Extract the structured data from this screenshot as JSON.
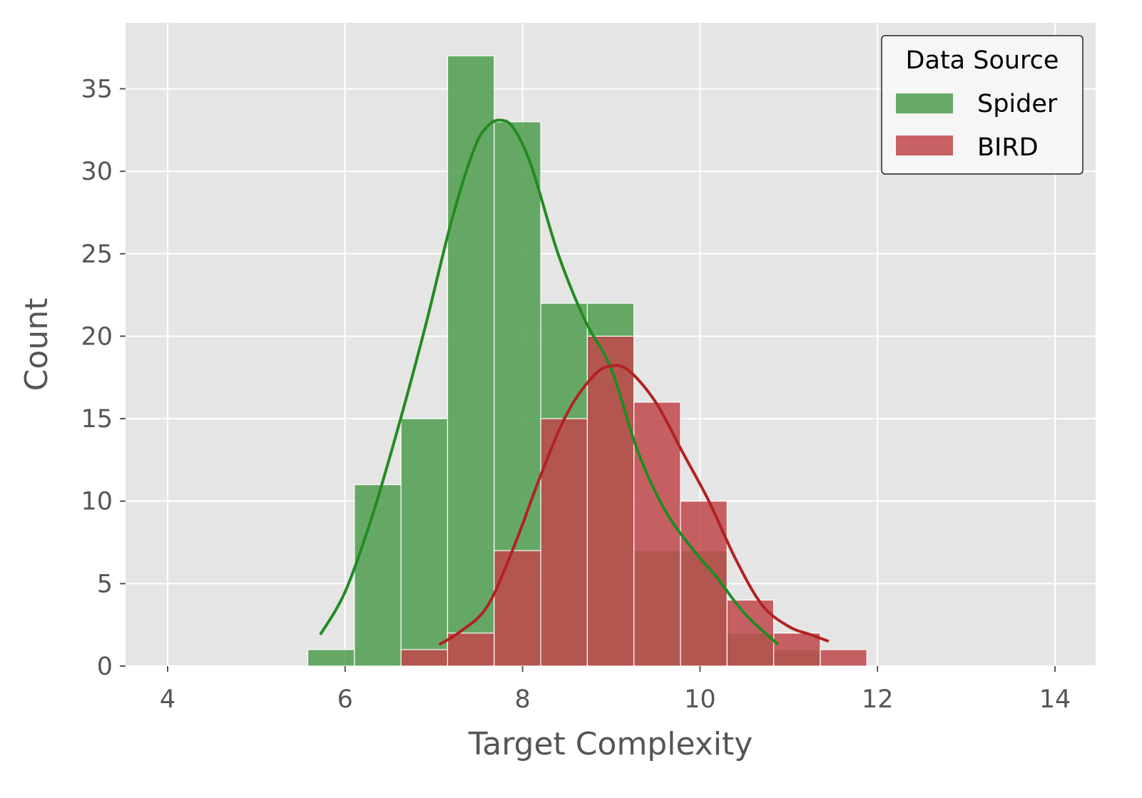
{
  "chart_data": {
    "type": "bar",
    "subtype": "overlaid-histogram-with-kde",
    "style": "ggplot",
    "grid": true,
    "xlabel": "Target Complexity",
    "ylabel": "Count",
    "xlim": [
      3.5,
      14.25
    ],
    "ylim": [
      0,
      39
    ],
    "x_ticks": [
      4,
      6,
      8,
      10,
      12,
      14
    ],
    "y_ticks": [
      0,
      5,
      10,
      15,
      20,
      25,
      30,
      35
    ],
    "bin_width": 0.525,
    "legend": {
      "title": "Data Source",
      "position": "top-right",
      "entries": [
        {
          "label": "Spider",
          "color": "#4f9e4f"
        },
        {
          "label": "BIRD",
          "color": "#c0484b"
        }
      ]
    },
    "series": [
      {
        "name": "Spider",
        "bar_color": "#4f9e4f",
        "kde_color": "#228b22",
        "bins": [
          {
            "x0": 5.58,
            "count": 1
          },
          {
            "x0": 6.105,
            "count": 11
          },
          {
            "x0": 6.63,
            "count": 15
          },
          {
            "x0": 7.155,
            "count": 37
          },
          {
            "x0": 7.68,
            "count": 33
          },
          {
            "x0": 8.205,
            "count": 22
          },
          {
            "x0": 8.73,
            "count": 22
          },
          {
            "x0": 9.255,
            "count": 7
          },
          {
            "x0": 9.78,
            "count": 7
          },
          {
            "x0": 10.305,
            "count": 2
          },
          {
            "x0": 10.83,
            "count": 1
          }
        ],
        "kde": [
          [
            5.72,
            1.9
          ],
          [
            6.0,
            4.5
          ],
          [
            6.3,
            9.0
          ],
          [
            6.6,
            14.5
          ],
          [
            6.9,
            20.5
          ],
          [
            7.2,
            27.0
          ],
          [
            7.45,
            31.3
          ],
          [
            7.6,
            32.7
          ],
          [
            7.75,
            33.1
          ],
          [
            7.9,
            32.6
          ],
          [
            8.1,
            30.3
          ],
          [
            8.4,
            25.0
          ],
          [
            8.7,
            21.0
          ],
          [
            9.0,
            18.0
          ],
          [
            9.3,
            13.0
          ],
          [
            9.6,
            9.5
          ],
          [
            9.9,
            7.2
          ],
          [
            10.2,
            5.3
          ],
          [
            10.5,
            3.2
          ],
          [
            10.88,
            1.3
          ]
        ]
      },
      {
        "name": "BIRD",
        "bar_color": "#c0484b",
        "kde_color": "#b22222",
        "bins": [
          {
            "x0": 6.63,
            "count": 1
          },
          {
            "x0": 7.155,
            "count": 2
          },
          {
            "x0": 7.68,
            "count": 7
          },
          {
            "x0": 8.205,
            "count": 15
          },
          {
            "x0": 8.73,
            "count": 20
          },
          {
            "x0": 9.255,
            "count": 16
          },
          {
            "x0": 9.78,
            "count": 10
          },
          {
            "x0": 10.305,
            "count": 4
          },
          {
            "x0": 10.83,
            "count": 2
          },
          {
            "x0": 11.355,
            "count": 1
          }
        ],
        "kde": [
          [
            7.06,
            1.3
          ],
          [
            7.3,
            2.1
          ],
          [
            7.6,
            3.6
          ],
          [
            7.9,
            7.2
          ],
          [
            8.2,
            11.5
          ],
          [
            8.5,
            15.3
          ],
          [
            8.8,
            17.6
          ],
          [
            9.0,
            18.2
          ],
          [
            9.2,
            17.9
          ],
          [
            9.5,
            16.0
          ],
          [
            9.8,
            13.0
          ],
          [
            10.1,
            10.0
          ],
          [
            10.4,
            6.5
          ],
          [
            10.7,
            3.7
          ],
          [
            11.0,
            2.4
          ],
          [
            11.25,
            1.9
          ],
          [
            11.45,
            1.5
          ]
        ]
      }
    ]
  }
}
